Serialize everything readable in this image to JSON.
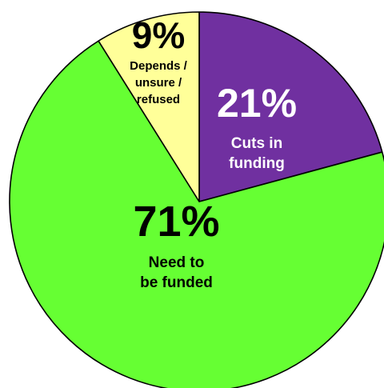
{
  "chart_data": {
    "type": "pie",
    "title": "",
    "categories": [
      "Cuts in funding",
      "Need to be funded",
      "Depends / unsure / refused"
    ],
    "values": [
      21,
      71,
      9
    ],
    "value_labels": [
      "21%",
      "71%",
      "9%"
    ],
    "label_lines": [
      [
        "Cuts in",
        "funding"
      ],
      [
        "Need to",
        "be funded"
      ],
      [
        "Depends /",
        "unsure /",
        "refused"
      ]
    ],
    "colors": [
      "#7030A0",
      "#66FF33",
      "#FFFF99"
    ],
    "label_colors": [
      "#FFFFFF",
      "#000000",
      "#000000"
    ],
    "start_angle_deg": 0,
    "direction": "clockwise",
    "legend": "none",
    "grid": false
  }
}
